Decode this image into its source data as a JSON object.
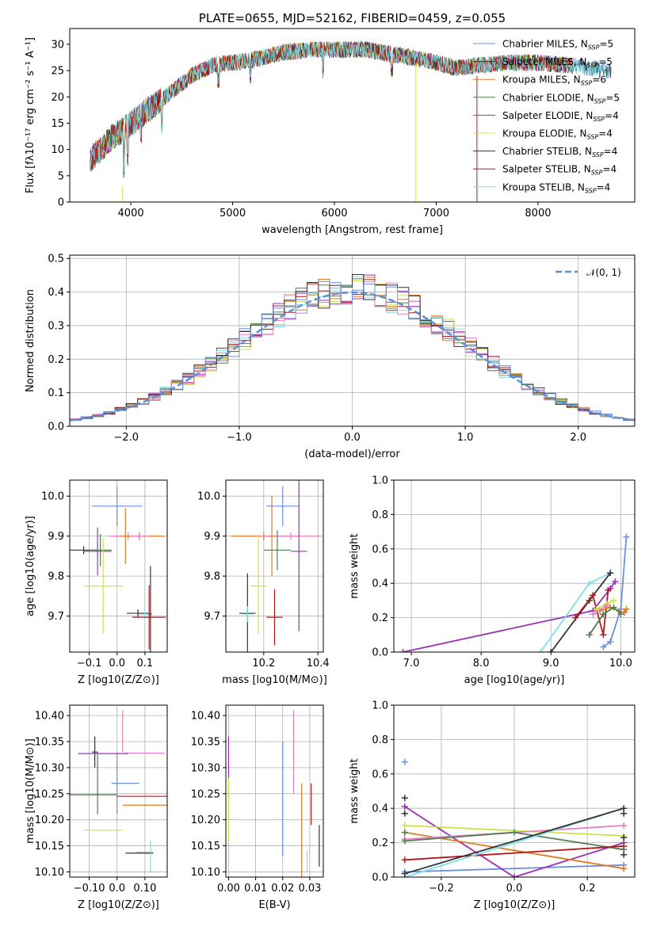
{
  "title": "PLATE=0655, MJD=52162, FIBERID=0459, z=0.055",
  "colors": [
    "#6a8fde",
    "#e07b24",
    "#4f7f4f",
    "#9b30b5",
    "#d4e04a",
    "#333333",
    "#b0181e",
    "#7ee0e6",
    "#e77fc2",
    "#6a8fde"
  ],
  "chart_data": [
    {
      "type": "line",
      "title": "PLATE=0655, MJD=52162, FIBERID=0459, z=0.055",
      "xlabel": "wavelength [Angstrom, rest frame]",
      "ylabel": "Flux [fλ10⁻¹⁷ erg cm⁻² s⁻¹ A⁻¹]",
      "xlim": [
        3400,
        8950
      ],
      "ylim": [
        0,
        33
      ],
      "xticks": [
        4000,
        5000,
        6000,
        7000,
        8000
      ],
      "yticks": [
        0,
        5,
        10,
        15,
        20,
        25,
        30
      ],
      "grid": false,
      "legend_position": "upper-right",
      "continuum_points": [
        [
          3600,
          8
        ],
        [
          3800,
          12
        ],
        [
          4000,
          15
        ],
        [
          4200,
          18
        ],
        [
          4400,
          21
        ],
        [
          4600,
          24
        ],
        [
          4800,
          26
        ],
        [
          5000,
          26.5
        ],
        [
          5200,
          27
        ],
        [
          5500,
          28.5
        ],
        [
          5800,
          29
        ],
        [
          6000,
          29
        ],
        [
          6300,
          29
        ],
        [
          6600,
          28
        ],
        [
          6900,
          27
        ],
        [
          7200,
          25.5
        ],
        [
          7400,
          26
        ],
        [
          7700,
          26.5
        ],
        [
          8000,
          26.5
        ],
        [
          8300,
          26
        ],
        [
          8700,
          25
        ]
      ],
      "series": [
        {
          "name": "Chabrier MILES, N_SSP=5",
          "color": "#6a8fde"
        },
        {
          "name": "Salpeter MILES, N_SSP=5",
          "color": "#333333"
        },
        {
          "name": "Kroupa MILES, N_SSP=6",
          "color": "#e07b24"
        },
        {
          "name": "Chabrier ELODIE, N_SSP=5",
          "color": "#4f7f4f"
        },
        {
          "name": "Salpeter ELODIE, N_SSP=4",
          "color": "#9b30b5"
        },
        {
          "name": "Kroupa ELODIE, N_SSP=4",
          "color": "#d4e04a"
        },
        {
          "name": "Chabrier STELIB, N_SSP=4",
          "color": "#333333"
        },
        {
          "name": "Salpeter STELIB, N_SSP=4",
          "color": "#b0181e"
        },
        {
          "name": "Kroupa STELIB, N_SSP=4",
          "color": "#7ee0e6"
        }
      ]
    },
    {
      "type": "line",
      "xlabel": "(data-model)/error",
      "ylabel": "Normed distribution",
      "xlim": [
        -2.5,
        2.5
      ],
      "ylim": [
        0,
        0.51
      ],
      "xticks": [
        -2,
        -1,
        0,
        1,
        2
      ],
      "yticks": [
        0.0,
        0.1,
        0.2,
        0.3,
        0.4,
        0.5
      ],
      "grid": true,
      "legend_position": "upper-right",
      "reference": {
        "name": "N(0,1)",
        "mu": 0,
        "sigma": 1,
        "color": "#5b8ed6"
      },
      "bin_width": 0.1,
      "histogram_colors": [
        "#9b30b5",
        "#d4e04a",
        "#e07b24",
        "#4f7f4f",
        "#b0181e",
        "#7ee0e6",
        "#e77fc2",
        "#333333",
        "#6a8fde"
      ]
    },
    {
      "type": "scatter",
      "xlabel": "Z [log10(Z/Z⊙)]",
      "ylabel": "age  [log10(age/yr)]",
      "xlim": [
        -0.17,
        0.18
      ],
      "ylim": [
        9.61,
        10.04
      ],
      "xticks": [
        -0.1,
        0.0,
        0.1
      ],
      "yticks": [
        9.7,
        9.8,
        9.9,
        10.0
      ],
      "grid": true,
      "points": [
        {
          "x": 0.0,
          "y": 9.975,
          "xerr": 0.09,
          "yerr": 0.05,
          "color": "#6a8fde"
        },
        {
          "x": 0.08,
          "y": 9.9,
          "xerr": 0.09,
          "yerr": 0.01,
          "color": "#e07b24"
        },
        {
          "x": 0.04,
          "y": 9.9,
          "xerr": 0.07,
          "yerr": 0.01,
          "color": "#e77fc2"
        },
        {
          "x": 0.03,
          "y": 9.9,
          "xerr": 0.02,
          "yerr": 0.07,
          "color": "#e07b24"
        },
        {
          "x": -0.12,
          "y": 9.865,
          "xerr": 0.05,
          "yerr": 0.01,
          "color": "#333333"
        },
        {
          "x": -0.06,
          "y": 9.865,
          "xerr": 0.04,
          "yerr": 0.04,
          "color": "#4f7f4f"
        },
        {
          "x": -0.07,
          "y": 9.862,
          "xerr": 0.05,
          "yerr": 0.06,
          "color": "#9b30b5"
        },
        {
          "x": -0.05,
          "y": 9.775,
          "xerr": 0.07,
          "yerr": 0.12,
          "color": "#d4e04a"
        },
        {
          "x": 0.075,
          "y": 9.707,
          "xerr": 0.04,
          "yerr": 0.01,
          "color": "#333333"
        },
        {
          "x": 0.1,
          "y": 9.705,
          "xerr": 0.02,
          "yerr": 0.01,
          "color": "#7ee0e6"
        },
        {
          "x": 0.12,
          "y": 9.705,
          "xerr": 0.005,
          "yerr": 0.12,
          "color": "#333333"
        },
        {
          "x": 0.115,
          "y": 9.697,
          "xerr": 0.06,
          "yerr": 0.08,
          "color": "#b0181e"
        }
      ]
    },
    {
      "type": "scatter",
      "xlabel": "mass [log10(M/M⊙)]",
      "ylabel": "",
      "xlim": [
        10.06,
        10.42
      ],
      "ylim": [
        9.61,
        10.04
      ],
      "xticks": [
        10.2,
        10.4
      ],
      "yticks": [
        9.7,
        9.8,
        9.9,
        10.0
      ],
      "grid": true,
      "points": [
        {
          "x": 10.27,
          "y": 9.975,
          "xerr": 0.06,
          "yerr": 0.05,
          "color": "#6a8fde"
        },
        {
          "x": 10.2,
          "y": 9.9,
          "xerr": 0.12,
          "yerr": 0.01,
          "color": "#e07b24"
        },
        {
          "x": 10.3,
          "y": 9.9,
          "xerr": 0.11,
          "yerr": 0.01,
          "color": "#e77fc2"
        },
        {
          "x": 10.23,
          "y": 9.9,
          "xerr": 0.01,
          "yerr": 0.1,
          "color": "#e07b24"
        },
        {
          "x": 10.25,
          "y": 9.865,
          "xerr": 0.05,
          "yerr": 0.05,
          "color": "#4f7f4f"
        },
        {
          "x": 10.33,
          "y": 9.862,
          "xerr": 0.03,
          "yerr": 0.2,
          "color": "#9b30b5"
        },
        {
          "x": 10.18,
          "y": 9.775,
          "xerr": 0.03,
          "yerr": 0.12,
          "color": "#d4e04a"
        },
        {
          "x": 10.14,
          "y": 9.707,
          "xerr": 0.03,
          "yerr": 0.1,
          "color": "#333333"
        },
        {
          "x": 10.14,
          "y": 9.705,
          "xerr": 0.02,
          "yerr": 0.02,
          "color": "#7ee0e6"
        },
        {
          "x": 10.24,
          "y": 9.697,
          "xerr": 0.03,
          "yerr": 0.07,
          "color": "#b0181e"
        }
      ]
    },
    {
      "type": "line",
      "xlabel": "age  [log10(age/yr)]",
      "ylabel": "mass weight",
      "xlim": [
        6.75,
        10.2
      ],
      "ylim": [
        0,
        1.0
      ],
      "xticks": [
        7,
        8,
        9,
        10
      ],
      "yticks": [
        0.0,
        0.2,
        0.4,
        0.6,
        0.8,
        1.0
      ],
      "grid": true,
      "series": [
        {
          "color": "#9b30b5",
          "x": [
            6.88,
            9.6,
            9.85,
            9.92
          ],
          "y": [
            0.0,
            0.24,
            0.37,
            0.41
          ]
        },
        {
          "color": "#6a8fde",
          "x": [
            9.75,
            9.85,
            10.0,
            10.08
          ],
          "y": [
            0.03,
            0.06,
            0.25,
            0.67
          ]
        },
        {
          "color": "#7ee0e6",
          "x": [
            8.85,
            9.55,
            9.85
          ],
          "y": [
            0.0,
            0.4,
            0.46
          ]
        },
        {
          "color": "#333333",
          "x": [
            9.0,
            9.55,
            9.85
          ],
          "y": [
            0.0,
            0.3,
            0.46
          ]
        },
        {
          "color": "#b0181e",
          "x": [
            9.35,
            9.6,
            9.75,
            9.82
          ],
          "y": [
            0.2,
            0.33,
            0.1,
            0.36
          ]
        },
        {
          "color": "#e07b24",
          "x": [
            9.7,
            9.85,
            10.05,
            10.08
          ],
          "y": [
            0.24,
            0.26,
            0.23,
            0.25
          ]
        },
        {
          "color": "#d4e04a",
          "x": [
            9.65,
            9.8,
            9.9
          ],
          "y": [
            0.25,
            0.28,
            0.3
          ]
        },
        {
          "color": "#4f7f4f",
          "x": [
            9.55,
            9.75,
            9.9,
            10.0
          ],
          "y": [
            0.1,
            0.22,
            0.26,
            0.22
          ]
        },
        {
          "color": "#e77fc2",
          "x": [
            9.6,
            9.8
          ],
          "y": [
            0.22,
            0.27
          ]
        }
      ]
    },
    {
      "type": "scatter",
      "xlabel": "Z [log10(Z/Z⊙)]",
      "ylabel": "mass [log10(M/M⊙)]",
      "xlim": [
        -0.17,
        0.18
      ],
      "ylim": [
        10.09,
        10.42
      ],
      "xticks": [
        -0.1,
        0.0,
        0.1
      ],
      "yticks": [
        10.1,
        10.15,
        10.2,
        10.25,
        10.3,
        10.35,
        10.4
      ],
      "grid": true,
      "points": [
        {
          "x": 0.02,
          "y": 10.37,
          "xerr": 0.0,
          "yerr": 0.04,
          "color": "#e77fc2"
        },
        {
          "x": -0.08,
          "y": 10.33,
          "xerr": 0.01,
          "yerr": 0.03,
          "color": "#333333"
        },
        {
          "x": 0.1,
          "y": 10.328,
          "xerr": 0.07,
          "yerr": 0.0,
          "color": "#e77fc2"
        },
        {
          "x": -0.05,
          "y": 10.327,
          "xerr": 0.09,
          "yerr": 0.0,
          "color": "#9b30b5"
        },
        {
          "x": 0.03,
          "y": 10.27,
          "xerr": 0.05,
          "yerr": 0.0,
          "color": "#6a8fde"
        },
        {
          "x": 0.0,
          "y": 10.27,
          "xerr": 0.0,
          "yerr": 0.06,
          "color": "#6a8fde"
        },
        {
          "x": -0.1,
          "y": 10.248,
          "xerr": 0.1,
          "yerr": 0.0,
          "color": "#4f7f4f"
        },
        {
          "x": 0.09,
          "y": 10.245,
          "xerr": 0.09,
          "yerr": 0.0,
          "color": "#b0181e"
        },
        {
          "x": 0.1,
          "y": 10.228,
          "xerr": 0.08,
          "yerr": 0.0,
          "color": "#e07b24"
        },
        {
          "x": -0.05,
          "y": 10.18,
          "xerr": 0.07,
          "yerr": 0.0,
          "color": "#d4e04a"
        },
        {
          "x": 0.08,
          "y": 10.136,
          "xerr": 0.05,
          "yerr": 0.0,
          "color": "#333333"
        },
        {
          "x": 0.1,
          "y": 10.138,
          "xerr": 0.03,
          "yerr": 0.0,
          "color": "#7ee0e6"
        },
        {
          "x": 0.12,
          "y": 10.13,
          "xerr": 0.0,
          "yerr": 0.03,
          "color": "#7ee0e6"
        },
        {
          "x": -0.07,
          "y": 10.27,
          "xerr": 0.0,
          "yerr": 0.06,
          "color": "#4f7f4f"
        }
      ]
    },
    {
      "type": "scatter",
      "xlabel": "E(B-V)",
      "ylabel": "",
      "xlim": [
        -0.001,
        0.035
      ],
      "ylim": [
        10.09,
        10.42
      ],
      "xticks": [
        0.0,
        0.01,
        0.02,
        0.03
      ],
      "yticks": [
        10.1,
        10.15,
        10.2,
        10.25,
        10.3,
        10.35,
        10.4
      ],
      "grid": true,
      "points": [
        {
          "x": 0.0,
          "y": 10.3,
          "xerr": 0.0,
          "yerr": 0.06,
          "color": "#9b30b5"
        },
        {
          "x": 0.0,
          "y": 10.22,
          "xerr": 0.0,
          "yerr": 0.06,
          "color": "#d4e04a"
        },
        {
          "x": 0.02,
          "y": 10.24,
          "xerr": 0.0,
          "yerr": 0.11,
          "color": "#6a8fde"
        },
        {
          "x": 0.024,
          "y": 10.33,
          "xerr": 0.0,
          "yerr": 0.08,
          "color": "#e77fc2"
        },
        {
          "x": 0.027,
          "y": 10.18,
          "xerr": 0.0,
          "yerr": 0.09,
          "color": "#e07b24"
        },
        {
          "x": 0.029,
          "y": 10.12,
          "xerr": 0.0,
          "yerr": 0.02,
          "color": "#7ee0e6"
        },
        {
          "x": 0.0305,
          "y": 10.23,
          "xerr": 0.0,
          "yerr": 0.04,
          "color": "#b0181e"
        },
        {
          "x": 0.0335,
          "y": 10.15,
          "xerr": 0.0,
          "yerr": 0.04,
          "color": "#333333"
        }
      ]
    },
    {
      "type": "line",
      "xlabel": "Z [log10(Z/Z⊙)]",
      "ylabel": "mass weight",
      "xlim": [
        -0.33,
        0.33
      ],
      "ylim": [
        0,
        1.0
      ],
      "xticks": [
        -0.2,
        0.0,
        0.2
      ],
      "yticks": [
        0.0,
        0.2,
        0.4,
        0.6,
        0.8,
        1.0
      ],
      "grid": true,
      "series": [
        {
          "color": "#6a8fde",
          "x": [
            -0.3,
            0.3
          ],
          "y": [
            0.03,
            0.07
          ]
        },
        {
          "color": "#9b30b5",
          "x": [
            -0.3,
            0.0,
            0.3
          ],
          "y": [
            0.41,
            0.0,
            0.2
          ]
        },
        {
          "color": "#e07b24",
          "x": [
            -0.3,
            0.3
          ],
          "y": [
            0.26,
            0.05
          ]
        },
        {
          "color": "#d4e04a",
          "x": [
            -0.3,
            0.3
          ],
          "y": [
            0.3,
            0.24
          ]
        },
        {
          "color": "#e77fc2",
          "x": [
            -0.3,
            0.3
          ],
          "y": [
            0.22,
            0.3
          ]
        },
        {
          "color": "#4f7f4f",
          "x": [
            -0.3,
            0.0,
            0.3
          ],
          "y": [
            0.21,
            0.26,
            0.16
          ]
        },
        {
          "color": "#b0181e",
          "x": [
            -0.3,
            0.3
          ],
          "y": [
            0.1,
            0.18
          ]
        },
        {
          "color": "#7ee0e6",
          "x": [
            -0.3,
            0.3
          ],
          "y": [
            0.0,
            0.4
          ]
        },
        {
          "color": "#333333",
          "x": [
            -0.3,
            0.3
          ],
          "y": [
            0.02,
            0.4
          ]
        }
      ],
      "markers": [
        {
          "color": "#6a8fde",
          "x": -0.3,
          "y": 0.67
        },
        {
          "color": "#333333",
          "x": -0.3,
          "y": 0.46
        },
        {
          "color": "#333333",
          "x": -0.3,
          "y": 0.37
        },
        {
          "color": "#4f7f4f",
          "x": -0.3,
          "y": 0.26
        },
        {
          "color": "#333333",
          "x": 0.3,
          "y": 0.37
        },
        {
          "color": "#333333",
          "x": 0.3,
          "y": 0.23
        },
        {
          "color": "#333333",
          "x": 0.3,
          "y": 0.13
        },
        {
          "color": "#e07b24",
          "x": 0.3,
          "y": 0.05
        }
      ]
    }
  ]
}
